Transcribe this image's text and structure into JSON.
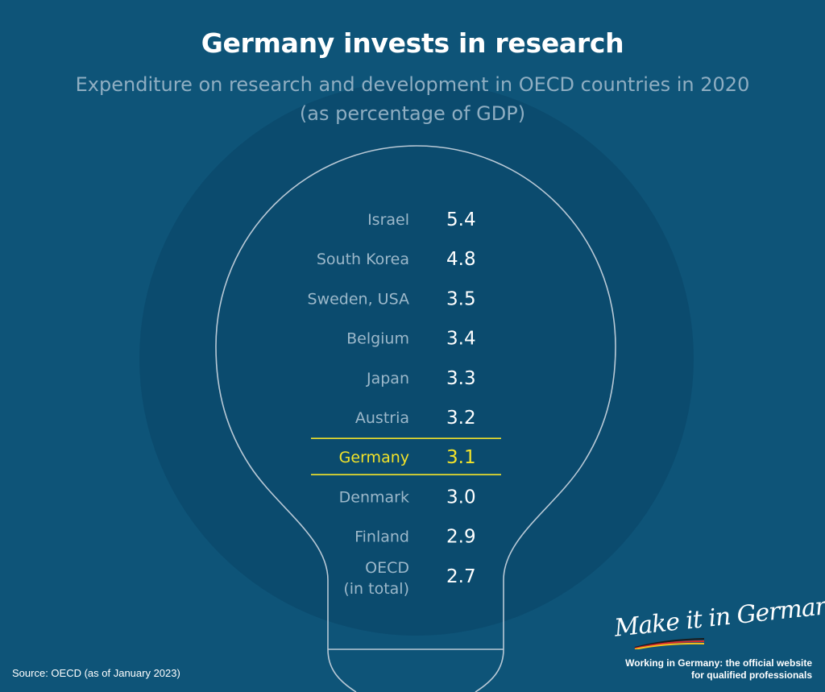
{
  "title": "Germany invests in research",
  "subtitle_line1": "Expenditure on research and development in OECD countries in 2020",
  "subtitle_line2": "(as percentage of GDP)",
  "source": "Source: OECD (as of January 2023)",
  "brand": {
    "script": "Make it in Germany",
    "tagline_line1": "Working in Germany: the official website",
    "tagline_line2": "for qualified professionals"
  },
  "colors": {
    "background": "#0e5478",
    "circle": "#0b4b6e",
    "label": "#9cb8ca",
    "value": "#ffffff",
    "highlight": "#f2e32a"
  },
  "chart_data": {
    "type": "table",
    "title": "Germany invests in research",
    "subtitle": "Expenditure on research and development in OECD countries in 2020 (as percentage of GDP)",
    "highlight": "Germany",
    "rows": [
      {
        "label": "Israel",
        "value": "5.4"
      },
      {
        "label": "South Korea",
        "value": "4.8"
      },
      {
        "label": "Sweden, USA",
        "value": "3.5"
      },
      {
        "label": "Belgium",
        "value": "3.4"
      },
      {
        "label": "Japan",
        "value": "3.3"
      },
      {
        "label": "Austria",
        "value": "3.2"
      },
      {
        "label": "Germany",
        "value": "3.1"
      },
      {
        "label": "Denmark",
        "value": "3.0"
      },
      {
        "label": "Finland",
        "value": "2.9"
      },
      {
        "label": "OECD (in total)",
        "lines": [
          "OECD",
          "(in total)"
        ],
        "value": "2.7"
      }
    ]
  }
}
